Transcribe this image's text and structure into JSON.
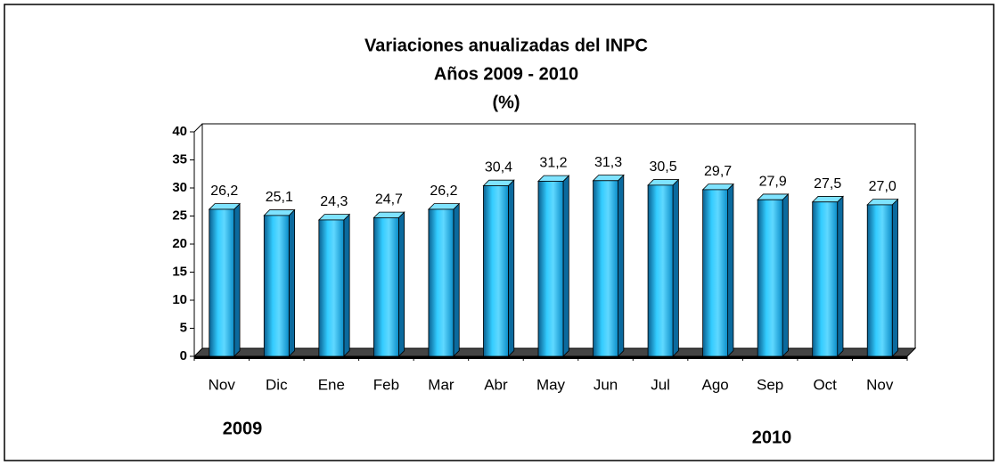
{
  "chart_data": {
    "type": "bar3d",
    "title": "Variaciones anualizadas del INPC",
    "subtitle": "Años 2009 - 2010",
    "unit_label": "(%)",
    "categories": [
      "Nov",
      "Dic",
      "Ene",
      "Feb",
      "Mar",
      "Abr",
      "May",
      "Jun",
      "Jul",
      "Ago",
      "Sep",
      "Oct",
      "Nov"
    ],
    "values": [
      26.2,
      25.1,
      24.3,
      24.7,
      26.2,
      30.4,
      31.2,
      31.3,
      30.5,
      29.7,
      27.9,
      27.5,
      27.0
    ],
    "value_labels": [
      "26,2",
      "25,1",
      "24,3",
      "24,7",
      "26,2",
      "30,4",
      "31,2",
      "31,3",
      "30,5",
      "29,7",
      "27,9",
      "27,5",
      "27,0"
    ],
    "color": "#33ccff",
    "ylim": [
      0,
      40
    ],
    "yticks": [
      0,
      5,
      10,
      15,
      20,
      25,
      30,
      35,
      40
    ],
    "annotations": [
      "2009",
      "2010"
    ]
  }
}
